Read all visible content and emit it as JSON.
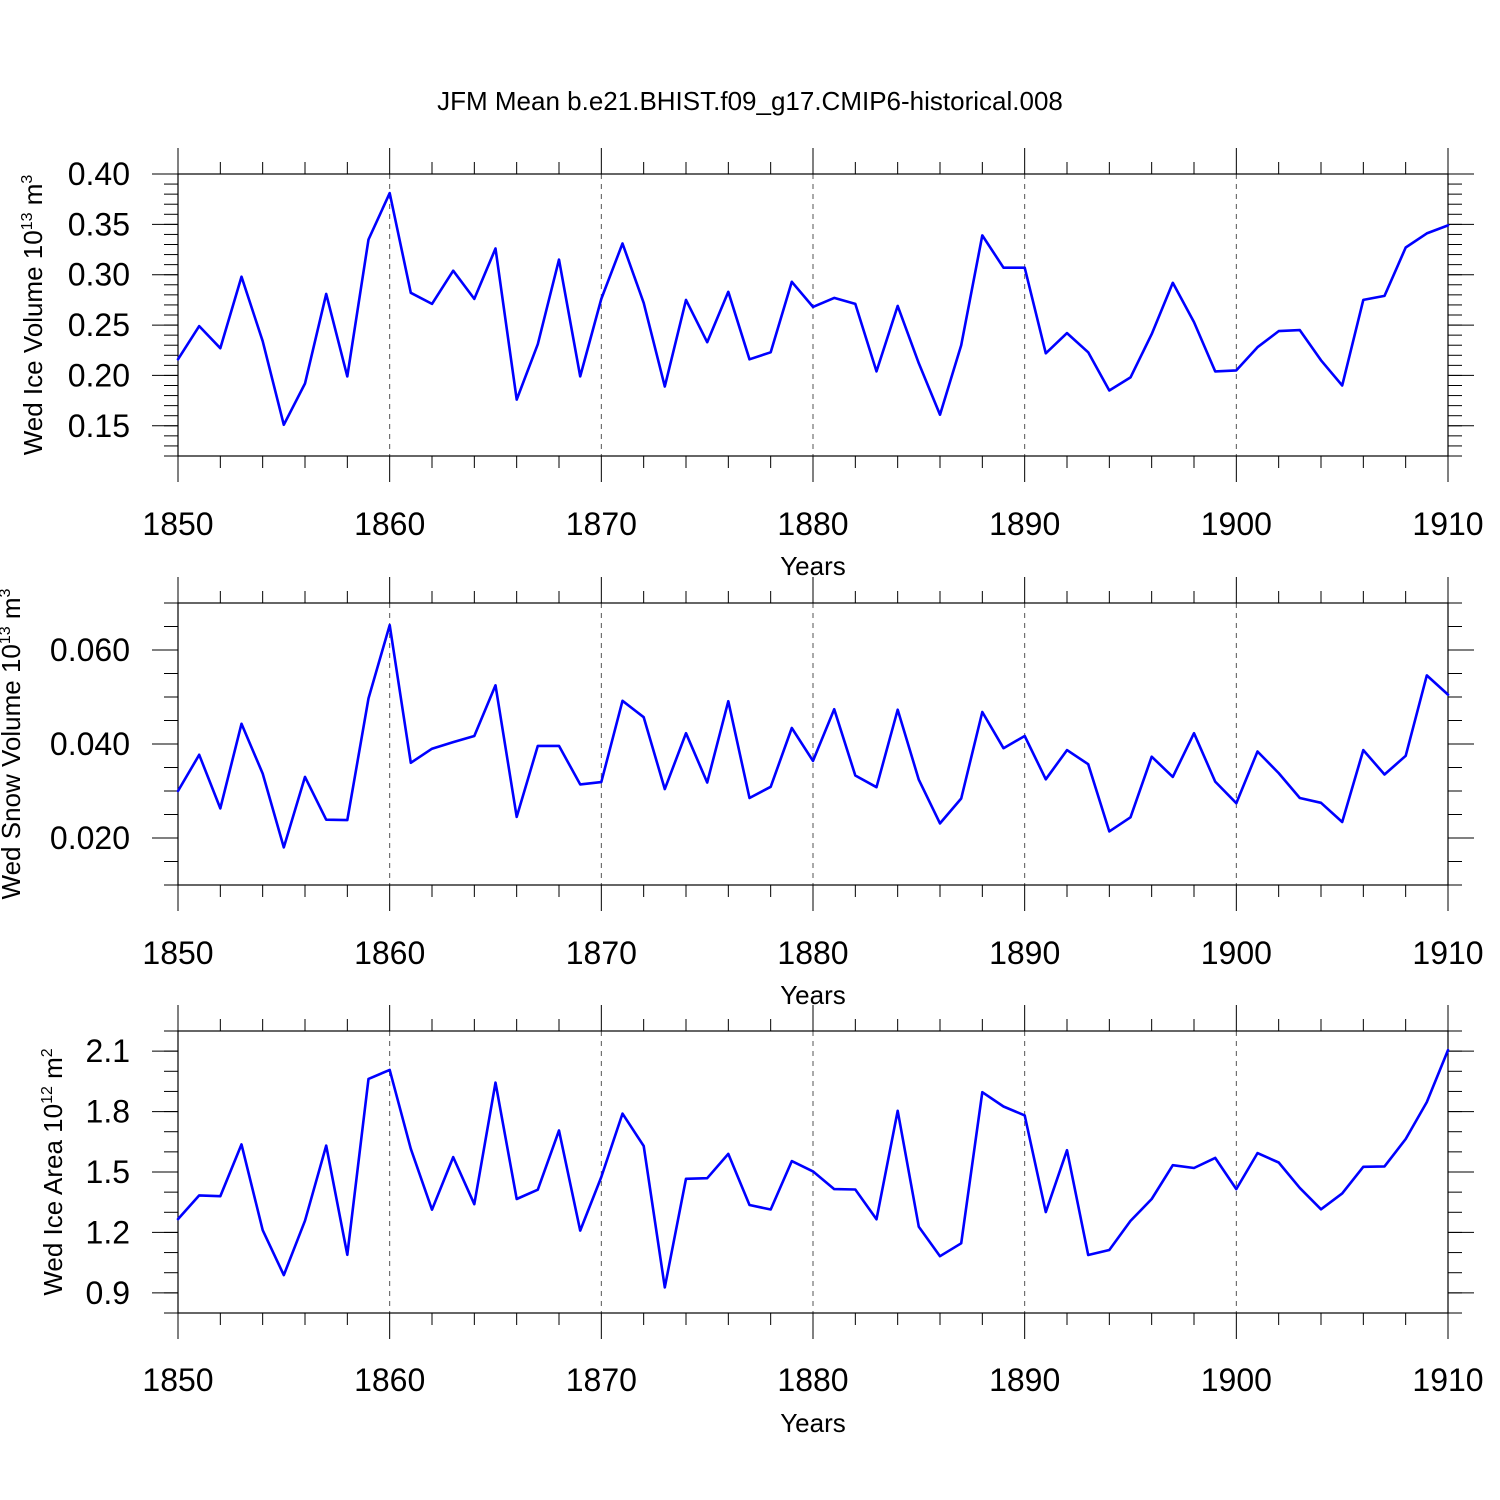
{
  "title": "JFM Mean b.e21.BHIST.f09_g17.CMIP6-historical.008",
  "colors": {
    "line": "#0000ff",
    "axis": "#000000",
    "grid": "#555555"
  },
  "chart_data": [
    {
      "type": "line",
      "name": "ice-volume",
      "ylabel_base": "Wed Ice Volume 10",
      "ylabel_exp": "13",
      "ylabel_unit": " m",
      "ylabel_unit_exp": "3",
      "xlabel": "Years",
      "xlim": [
        1850,
        1910
      ],
      "ylim": [
        0.12,
        0.4
      ],
      "xticks": [
        1850,
        1860,
        1870,
        1880,
        1890,
        1900,
        1910
      ],
      "xtick_labels": [
        "1850",
        "1860",
        "1870",
        "1880",
        "1890",
        "1900",
        "1910"
      ],
      "yticks": [
        0.15,
        0.2,
        0.25,
        0.3,
        0.35,
        0.4
      ],
      "ytick_labels": [
        "0.15",
        "0.20",
        "0.25",
        "0.30",
        "0.35",
        "0.40"
      ],
      "yminor_step": 0.01,
      "x_start": 1850,
      "values": [
        0.216,
        0.249,
        0.227,
        0.298,
        0.234,
        0.151,
        0.192,
        0.281,
        0.199,
        0.335,
        0.381,
        0.282,
        0.271,
        0.304,
        0.276,
        0.326,
        0.176,
        0.231,
        0.315,
        0.199,
        0.276,
        0.331,
        0.272,
        0.189,
        0.275,
        0.233,
        0.283,
        0.216,
        0.223,
        0.293,
        0.268,
        0.277,
        0.271,
        0.204,
        0.269,
        0.212,
        0.161,
        0.23,
        0.339,
        0.307,
        0.307,
        0.222,
        0.242,
        0.223,
        0.185,
        0.198,
        0.241,
        0.292,
        0.253,
        0.204,
        0.205,
        0.228,
        0.244,
        0.245,
        0.215,
        0.19,
        0.275,
        0.279,
        0.327,
        0.341,
        0.349
      ]
    },
    {
      "type": "line",
      "name": "snow-volume",
      "ylabel_base": "Wed Snow Volume 10",
      "ylabel_exp": "13",
      "ylabel_unit": " m",
      "ylabel_unit_exp": "3",
      "xlabel": "Years",
      "xlim": [
        1850,
        1910
      ],
      "ylim": [
        0.01,
        0.07
      ],
      "xticks": [
        1850,
        1860,
        1870,
        1880,
        1890,
        1900,
        1910
      ],
      "xtick_labels": [
        "1850",
        "1860",
        "1870",
        "1880",
        "1890",
        "1900",
        "1910"
      ],
      "yticks": [
        0.02,
        0.04,
        0.06
      ],
      "ytick_labels": [
        "0.020",
        "0.040",
        "0.060"
      ],
      "yminor_step": 0.005,
      "x_start": 1850,
      "values": [
        0.03,
        0.0377,
        0.0263,
        0.0443,
        0.0337,
        0.018,
        0.033,
        0.0239,
        0.0238,
        0.0497,
        0.0653,
        0.036,
        0.039,
        0.0404,
        0.0417,
        0.0525,
        0.0245,
        0.0396,
        0.0396,
        0.0314,
        0.0319,
        0.0492,
        0.0457,
        0.0304,
        0.0423,
        0.0318,
        0.0491,
        0.0285,
        0.0309,
        0.0434,
        0.0364,
        0.0474,
        0.0333,
        0.0308,
        0.0473,
        0.0324,
        0.0231,
        0.0284,
        0.0468,
        0.0391,
        0.0417,
        0.0325,
        0.0387,
        0.0357,
        0.0214,
        0.0244,
        0.0373,
        0.033,
        0.0423,
        0.032,
        0.0274,
        0.0384,
        0.0338,
        0.0285,
        0.0275,
        0.0234,
        0.0387,
        0.0335,
        0.0375,
        0.0546,
        0.0505
      ]
    },
    {
      "type": "line",
      "name": "ice-area",
      "ylabel_base": "Wed Ice Area 10",
      "ylabel_exp": "12",
      "ylabel_unit": " m",
      "ylabel_unit_exp": "2",
      "xlabel": "Years",
      "xlim": [
        1850,
        1910
      ],
      "ylim": [
        0.8,
        2.2
      ],
      "xticks": [
        1850,
        1860,
        1870,
        1880,
        1890,
        1900,
        1910
      ],
      "xtick_labels": [
        "1850",
        "1860",
        "1870",
        "1880",
        "1890",
        "1900",
        "1910"
      ],
      "yticks": [
        0.9,
        1.2,
        1.5,
        1.8,
        2.1
      ],
      "ytick_labels": [
        "0.9",
        "1.2",
        "1.5",
        "1.8",
        "2.1"
      ],
      "yminor_step": 0.1,
      "x_start": 1850,
      "values": [
        1.266,
        1.384,
        1.38,
        1.637,
        1.211,
        0.988,
        1.258,
        1.631,
        1.089,
        1.962,
        2.007,
        1.615,
        1.313,
        1.574,
        1.34,
        1.944,
        1.366,
        1.412,
        1.706,
        1.209,
        1.475,
        1.79,
        1.629,
        0.927,
        1.466,
        1.469,
        1.59,
        1.336,
        1.314,
        1.554,
        1.503,
        1.415,
        1.413,
        1.265,
        1.804,
        1.228,
        1.082,
        1.146,
        1.896,
        1.825,
        1.781,
        1.301,
        1.608,
        1.088,
        1.113,
        1.257,
        1.366,
        1.534,
        1.52,
        1.57,
        1.415,
        1.594,
        1.547,
        1.421,
        1.315,
        1.394,
        1.526,
        1.528,
        1.664,
        1.847,
        2.105
      ]
    }
  ]
}
